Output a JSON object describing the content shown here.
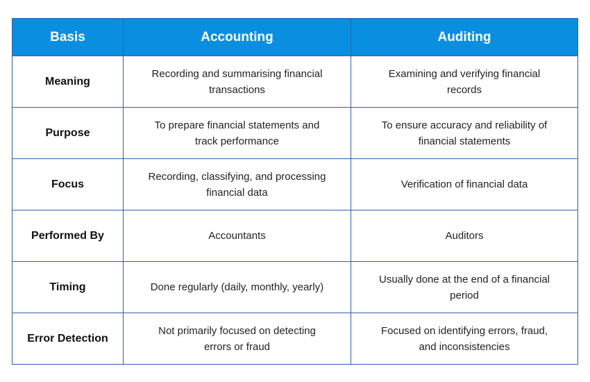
{
  "colors": {
    "header_bg": "#0a8fe0",
    "border": "#2b5fae",
    "header_text": "#ffffff"
  },
  "headers": [
    "Basis",
    "Accounting",
    "Auditing"
  ],
  "rows": [
    {
      "basis": "Meaning",
      "accounting": "Recording and summarising financial transactions",
      "auditing": "Examining and verifying financial records"
    },
    {
      "basis": "Purpose",
      "accounting": "To prepare financial statements and track performance",
      "auditing": "To ensure accuracy and reliability of financial statements"
    },
    {
      "basis": "Focus",
      "accounting": "Recording, classifying, and processing financial data",
      "auditing": "Verification of financial data"
    },
    {
      "basis": "Performed By",
      "accounting": "Accountants",
      "auditing": "Auditors"
    },
    {
      "basis": "Timing",
      "accounting": "Done regularly (daily, monthly, yearly)",
      "auditing": "Usually done at the end of a financial period"
    },
    {
      "basis": "Error Detection",
      "accounting": "Not primarily focused on detecting errors or fraud",
      "auditing": "Focused on identifying errors, fraud, and inconsistencies"
    }
  ]
}
